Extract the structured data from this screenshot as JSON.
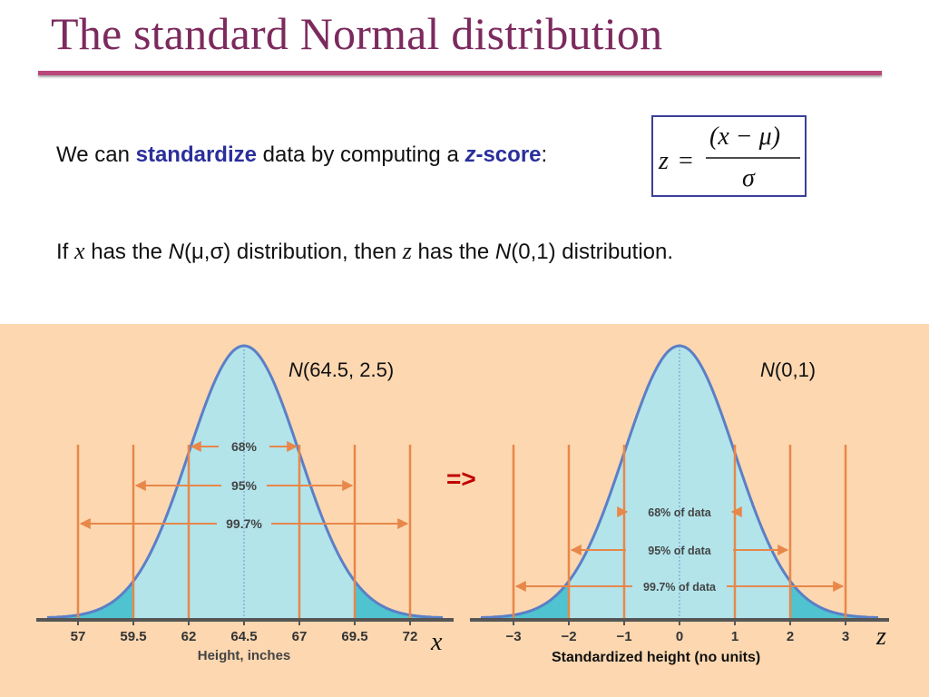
{
  "title": "The standard Normal distribution",
  "line1": {
    "pre": "We can ",
    "kw1": "standardize",
    "mid": " data by computing a ",
    "kw2_italic": "z",
    "kw2_rest": "-score",
    "post": ":"
  },
  "formula": {
    "lhs": "z",
    "eq": "=",
    "numerator": "(x − μ)",
    "denominator": "σ"
  },
  "line2": {
    "t1": "If ",
    "x": "x",
    "t2": " has the ",
    "N1": "N",
    "params": "(μ,σ)",
    "t3": " distribution, then ",
    "z": "z",
    "t4": " has the ",
    "N2": "N",
    "params2": "(0,1)",
    "t5": " distribution."
  },
  "arrow": "=>",
  "left_chart": {
    "label_N": "N",
    "label_params": "(64.5, 2.5)",
    "mean": 64.5,
    "sd": 2.5,
    "ticks": [
      "57",
      "59.5",
      "62",
      "64.5",
      "67",
      "69.5",
      "72"
    ],
    "xlabel": "Height, inches",
    "bands": [
      "68%",
      "95%",
      "99.7%"
    ],
    "axis_var": "x"
  },
  "right_chart": {
    "label_N": "N",
    "label_params": "(0,1)",
    "mean": 0,
    "sd": 1,
    "ticks": [
      "−3",
      "−2",
      "−1",
      "0",
      "1",
      "2",
      "3"
    ],
    "xlabel": "Standardized height (no units)",
    "bands": [
      "68% of data",
      "95% of data",
      "99.7% of data"
    ],
    "axis_var": "z"
  },
  "colors": {
    "title": "#7c2a5e",
    "rule": "#b8477a",
    "keyword": "#2a2f9b",
    "arrow": "#c00000",
    "panel_bg": "#fcd7b0",
    "curve": "#5b7fc7",
    "fill_light": "#b2e4ea",
    "fill_dark": "#4fc3cf",
    "bracket": "#e8874a"
  }
}
